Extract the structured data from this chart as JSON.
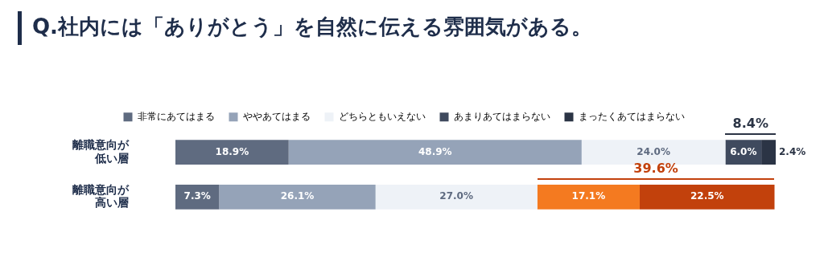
{
  "chart_data": {
    "type": "bar",
    "orientation": "horizontal",
    "stacked": true,
    "title": "Q.社内には「ありがとう」を自然に伝える雰囲気がある。",
    "categories": [
      "離職意向が低い層",
      "離職意向が高い層"
    ],
    "xlim": [
      0,
      100.2
    ],
    "tick_labels": "y",
    "grid": false,
    "legend": "top",
    "data_labels": true,
    "series": [
      {
        "name": "非常にあてはまる",
        "color": "#5f6b80",
        "values": [
          18.9,
          7.3
        ],
        "value_labels": [
          "18.9%",
          "7.3%"
        ]
      },
      {
        "name": "ややあてはまる",
        "color": "#95a3b8",
        "values": [
          48.9,
          26.1
        ],
        "value_labels": [
          "48.9%",
          "26.1%"
        ]
      },
      {
        "name": "どちらともいえない",
        "color": "#eef2f7",
        "values": [
          24.0,
          27.0
        ],
        "value_labels": [
          "24.0%",
          "27.0%"
        ]
      },
      {
        "name": "あまりあてはまらない",
        "color": "#3f4a5e",
        "colors": [
          "#3f4a5e",
          "#f47a20"
        ],
        "values": [
          6.0,
          17.1
        ],
        "value_labels": [
          "6.0%",
          "17.1%"
        ]
      },
      {
        "name": "まったくあてはまらない",
        "color": "#2b3445",
        "colors": [
          "#2b3445",
          "#c2410c"
        ],
        "values": [
          2.4,
          22.5
        ],
        "value_labels": [
          "2.4%",
          "22.5%"
        ]
      }
    ],
    "annotations": [
      "8.4%",
      "39.6%"
    ]
  }
}
